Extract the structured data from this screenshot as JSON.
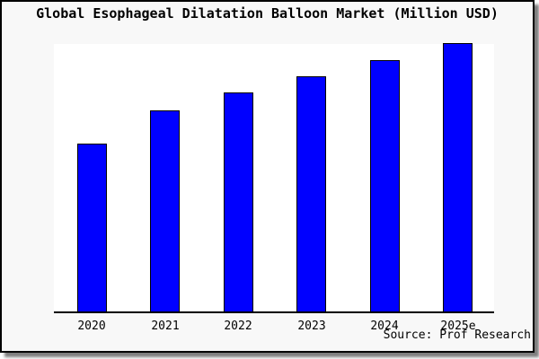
{
  "title": "Global Esophageal Dilatation Balloon Market (Million USD)",
  "source": "Source: Prof Research",
  "colors": {
    "background": "#f8f8f8",
    "plot_background": "#ffffff",
    "frame_border": "#000000",
    "axis": "#000000",
    "text": "#000000",
    "shadow": "#7d7d7d"
  },
  "chart_data": {
    "type": "bar",
    "categories": [
      "2020",
      "2021",
      "2022",
      "2023",
      "2024",
      "2025e"
    ],
    "values": [
      62.5,
      74.9,
      81.6,
      87.6,
      93.6,
      100
    ],
    "title": "Global Esophageal Dilatation Balloon Market (Million USD)",
    "xlabel": "",
    "ylabel": "",
    "ylim": [
      0,
      100
    ],
    "grid": false,
    "legend": false,
    "bar_color": "#0000FF",
    "bar_border_color": "#000000",
    "note": "No y-axis ticks or value labels are shown in the image; values are relative bar heights normalized so the 2025e bar (which reaches the top of the plot area) equals 100."
  }
}
